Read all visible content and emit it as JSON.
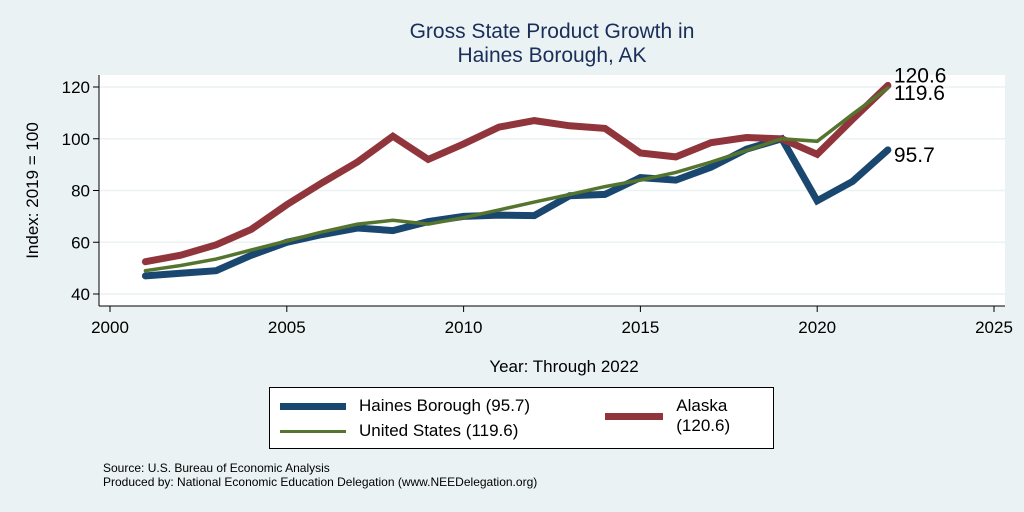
{
  "chart_data": {
    "type": "line",
    "title": "Gross State Product Growth in Haines Borough, AK",
    "title_lines": [
      "Gross State Product Growth in",
      "Haines Borough, AK"
    ],
    "xlabel": "Year: Through 2022",
    "ylabel": "Index: 2019 = 100",
    "xlim": [
      2000,
      2025
    ],
    "ylim": [
      40,
      120
    ],
    "xticks": [
      2000,
      2005,
      2010,
      2015,
      2020,
      2025
    ],
    "yticks": [
      40,
      60,
      80,
      100,
      120
    ],
    "grid": true,
    "legend_position": "bottom",
    "x": [
      2001,
      2002,
      2003,
      2004,
      2005,
      2006,
      2007,
      2008,
      2009,
      2010,
      2011,
      2012,
      2013,
      2014,
      2015,
      2016,
      2017,
      2018,
      2019,
      2020,
      2021,
      2022
    ],
    "series": [
      {
        "name": "Haines Borough",
        "legend_label": "Haines Borough (95.7)",
        "color": "#1a476f",
        "end_label": "95.7",
        "values": [
          47,
          48,
          49,
          55,
          60,
          63,
          65.5,
          64.5,
          68,
          70,
          70.5,
          70.3,
          78,
          78.5,
          85,
          84,
          89,
          96,
          100,
          76,
          83.5,
          95.7
        ]
      },
      {
        "name": "Alaska",
        "legend_label": "Alaska (120.6)",
        "color": "#90353b",
        "end_label": "120.6",
        "values": [
          52.5,
          55,
          59,
          65,
          74.5,
          83,
          91,
          101,
          92,
          98,
          104.5,
          107,
          105,
          104,
          94.5,
          93,
          98.5,
          100.5,
          100,
          94,
          107.5,
          120.6
        ]
      },
      {
        "name": "United States",
        "legend_label": "United States (119.6)",
        "color": "#55752f",
        "end_label": "119.6",
        "values": [
          49,
          51,
          53.5,
          57,
          60.5,
          64,
          67,
          68.5,
          67,
          69.5,
          72.5,
          75.5,
          78.5,
          81.5,
          84,
          87,
          91,
          95.5,
          100,
          99,
          109.5,
          119.6
        ]
      }
    ]
  },
  "notes": {
    "source": "Source: U.S. Bureau of Economic Analysis",
    "produced_by": "Produced by: National Economic Education Delegation (www.NEEDelegation.org)"
  }
}
